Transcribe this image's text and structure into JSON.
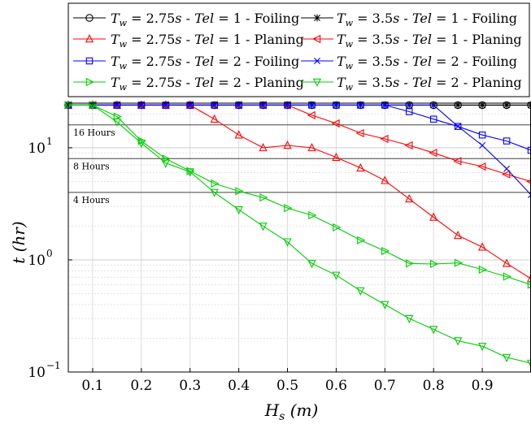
{
  "chart_data": {
    "type": "line",
    "xlabel": "Hs (m)",
    "ylabel": "t (hr)",
    "xlim": [
      0.05,
      1.0
    ],
    "ylim": [
      0.1,
      25
    ],
    "yscale": "log",
    "grid": true,
    "legend_position": "top",
    "x_ticks": [
      0.1,
      0.2,
      0.3,
      0.4,
      0.5,
      0.6,
      0.7,
      0.8,
      0.9
    ],
    "x_tick_labels": [
      "0.1",
      "0.2",
      "0.3",
      "0.4",
      "0.5",
      "0.6",
      "0.7",
      "0.8",
      "0.9"
    ],
    "y_ticks": [
      0.1,
      1,
      10
    ],
    "y_tick_labels": [
      "10",
      "10",
      "10"
    ],
    "y_tick_exponents": [
      "−1",
      "0",
      "1"
    ],
    "reference_lines": [
      {
        "value": 16,
        "label": "16 Hours"
      },
      {
        "value": 8,
        "label": "8 Hours"
      },
      {
        "value": 4,
        "label": "4 Hours"
      }
    ],
    "x": [
      0.05,
      0.1,
      0.15,
      0.2,
      0.25,
      0.3,
      0.35,
      0.4,
      0.45,
      0.5,
      0.55,
      0.6,
      0.65,
      0.7,
      0.75,
      0.8,
      0.85,
      0.9,
      0.95,
      1.0
    ],
    "series": [
      {
        "name": "Tw = 2.75s - Tel = 1 - Foiling",
        "color": "#000000",
        "marker": "circle",
        "values": [
          24,
          24,
          24,
          24,
          24,
          24,
          24,
          24,
          24,
          24,
          24,
          24,
          24,
          24,
          24,
          24,
          24,
          24,
          24,
          24
        ]
      },
      {
        "name": "Tw = 3.5s - Tel = 1 - Foiling",
        "color": "#000000",
        "marker": "star",
        "values": [
          24,
          24,
          24,
          24,
          24,
          24,
          24,
          24,
          24,
          24,
          24,
          24,
          24,
          24,
          24,
          24,
          24,
          24,
          24,
          24
        ]
      },
      {
        "name": "Tw = 2.75s - Tel = 1 - Planing",
        "color": "#ff0000",
        "marker": "triangle-up",
        "values": [
          24,
          24,
          24,
          24,
          24,
          24,
          18,
          13,
          10,
          10.5,
          10,
          8.2,
          6.6,
          5.1,
          3.5,
          2.4,
          1.65,
          1.3,
          0.93,
          0.68
        ]
      },
      {
        "name": "Tw = 3.5s - Tel = 1 - Planing",
        "color": "#ff0000",
        "marker": "triangle-left",
        "values": [
          24,
          24,
          24,
          24,
          24,
          24,
          24,
          24,
          24,
          24,
          19.5,
          16.5,
          13.5,
          12,
          10.5,
          9,
          7.6,
          6.8,
          5.8,
          5.0
        ]
      },
      {
        "name": "Tw = 2.75s - Tel = 2 - Foiling",
        "color": "#0000ff",
        "marker": "square",
        "values": [
          24,
          24,
          24,
          24,
          24,
          24,
          24,
          24,
          24,
          24,
          24,
          24,
          24,
          24,
          21,
          18,
          15.5,
          13,
          11.5,
          9.5
        ]
      },
      {
        "name": "Tw = 3.5s - Tel = 2 - Foiling",
        "color": "#0000ff",
        "marker": "x",
        "values": [
          24,
          24,
          24,
          24,
          24,
          24,
          24,
          24,
          24,
          24,
          24,
          24,
          24,
          24,
          24,
          24,
          15.5,
          10.5,
          6.5,
          3.8
        ]
      },
      {
        "name": "Tw = 2.75s - Tel = 2 - Planing",
        "color": "#00cc00",
        "marker": "triangle-right",
        "values": [
          24,
          24,
          19,
          11.5,
          8,
          6.2,
          4.8,
          4.1,
          3.6,
          2.9,
          2.5,
          1.95,
          1.5,
          1.2,
          0.93,
          0.92,
          0.94,
          0.82,
          0.71,
          0.6
        ]
      },
      {
        "name": "Tw = 3.5s - Tel = 2 - Planing",
        "color": "#00cc00",
        "marker": "triangle-down",
        "values": [
          24,
          24,
          17,
          11,
          7.3,
          6.1,
          4,
          2.8,
          2,
          1.45,
          0.93,
          0.73,
          0.53,
          0.4,
          0.3,
          0.24,
          0.19,
          0.17,
          0.135,
          0.12
        ]
      }
    ]
  }
}
